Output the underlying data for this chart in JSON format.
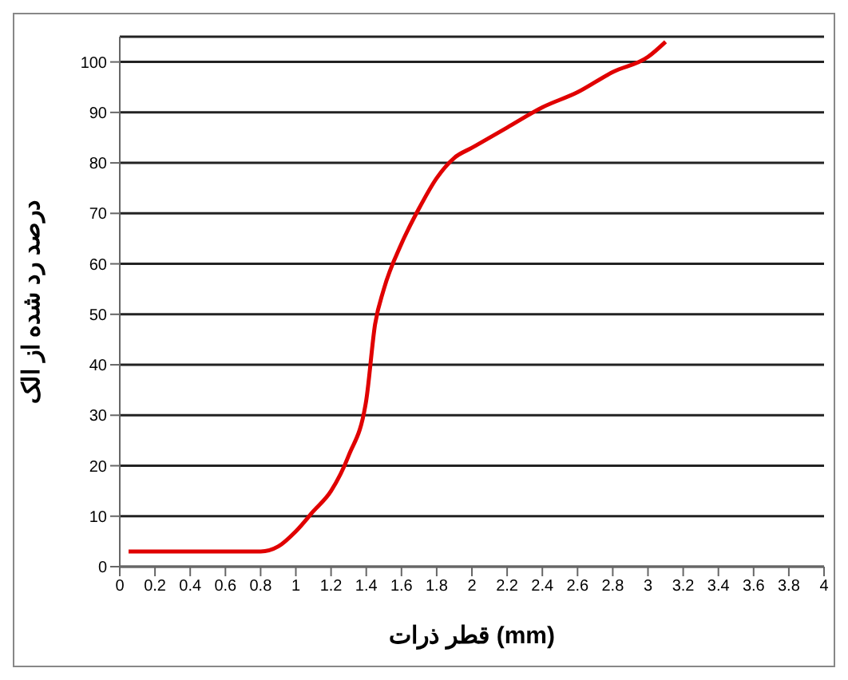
{
  "chart_data": {
    "type": "line",
    "xlabel": "قطر ذرات (mm)",
    "ylabel": "درصد رد شده از الک",
    "x": [
      0.05,
      0.8,
      0.9,
      1.0,
      1.1,
      1.2,
      1.3,
      1.4,
      1.45,
      1.5,
      1.6,
      1.7,
      1.8,
      1.9,
      2.0,
      2.2,
      2.4,
      2.6,
      2.8,
      3.0,
      3.1
    ],
    "series": [
      {
        "color": "#e00000",
        "values": [
          3,
          3,
          4,
          7,
          11,
          15,
          22,
          33,
          48,
          55,
          64,
          71,
          77,
          81,
          83,
          87,
          91,
          94,
          98,
          101,
          104
        ]
      }
    ],
    "xlim": [
      0,
      4
    ],
    "xticks": [
      0,
      0.2,
      0.4,
      0.6,
      0.8,
      1,
      1.2,
      1.4,
      1.6,
      1.8,
      2,
      2.2,
      2.4,
      2.6,
      2.8,
      3,
      3.2,
      3.4,
      3.6,
      3.8,
      4
    ],
    "ylim": [
      0,
      105
    ],
    "yticks": [
      0,
      10,
      20,
      30,
      40,
      50,
      60,
      70,
      80,
      90,
      100
    ],
    "grid": "y",
    "legend": false,
    "marker": "none",
    "line_style": "solid"
  }
}
